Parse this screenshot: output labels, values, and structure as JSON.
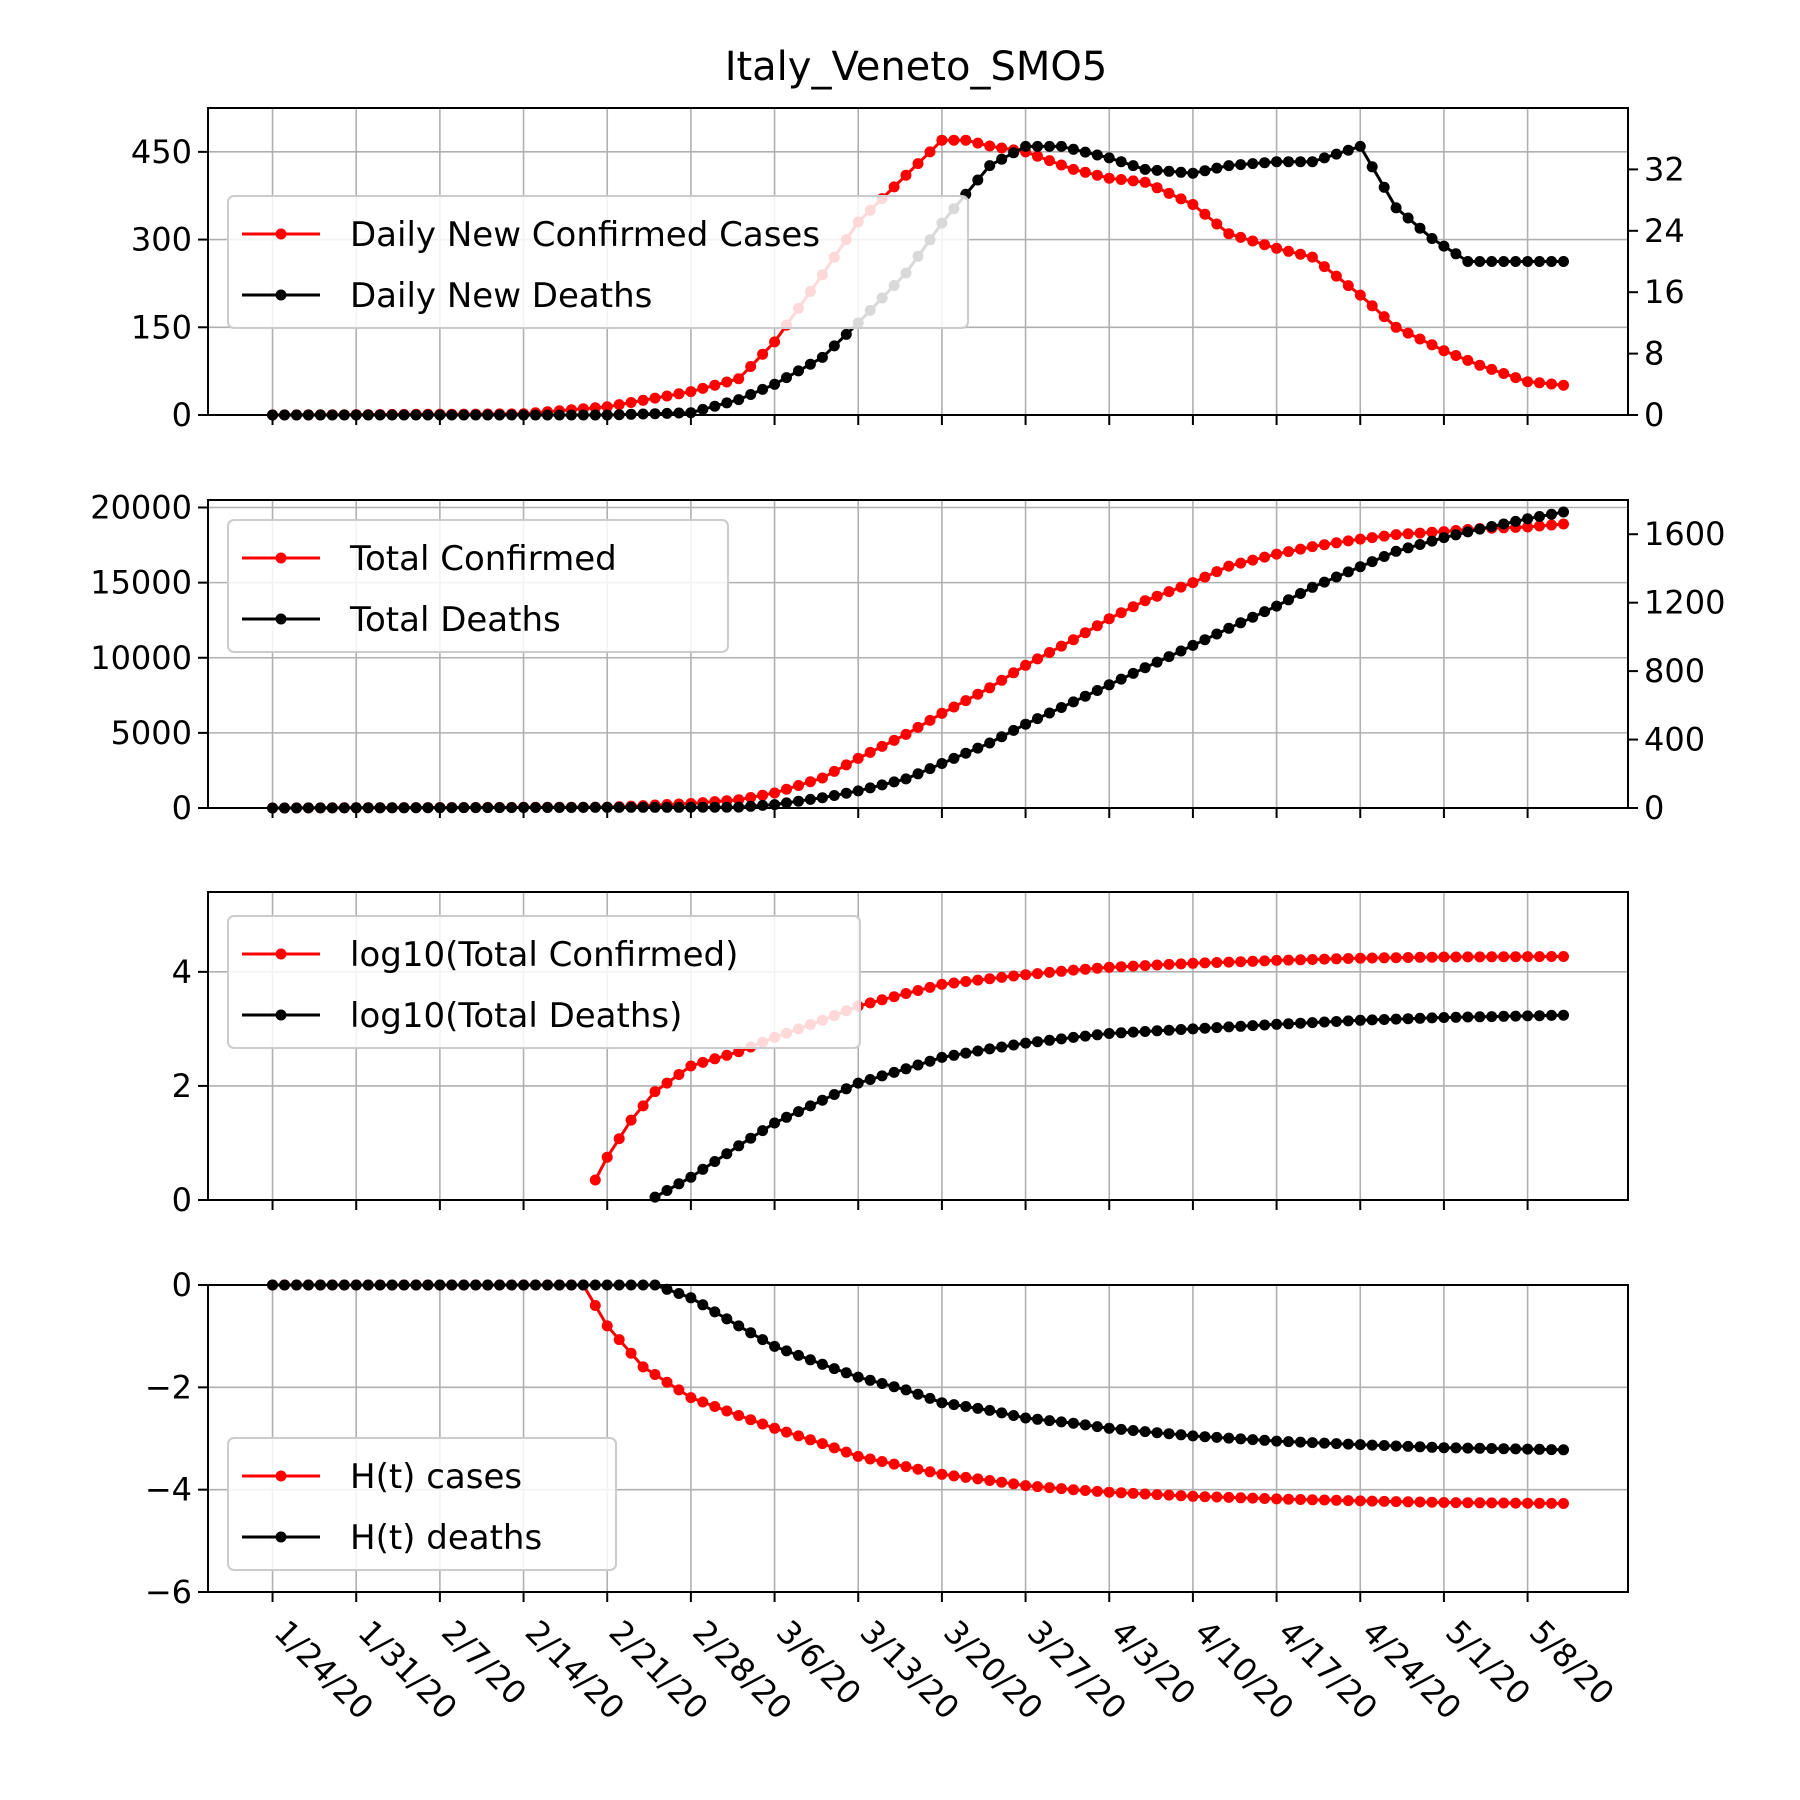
{
  "title": "Italy_Veneto_SMO5",
  "x_dates": [
    "1/24/20",
    "1/31/20",
    "2/7/20",
    "2/14/20",
    "2/21/20",
    "2/28/20",
    "3/6/20",
    "3/13/20",
    "3/20/20",
    "3/27/20",
    "4/3/20",
    "4/10/20",
    "4/17/20",
    "4/24/20",
    "5/1/20",
    "5/8/20"
  ],
  "colors": {
    "cases": "#ff0000",
    "deaths": "#000000",
    "grid": "#b0b0b0"
  },
  "chart_data": [
    {
      "type": "line",
      "x_range": [
        "1/24/20",
        "5/11/20"
      ],
      "ylim_left": [
        0,
        525
      ],
      "yticks_left": [
        "0",
        "150",
        "300",
        "450"
      ],
      "ylim_right": [
        0,
        40
      ],
      "yticks_right": [
        "0",
        "8",
        "16",
        "24",
        "32"
      ],
      "grid": true,
      "legend": "upper-left",
      "series": [
        {
          "name": "Daily New Confirmed Cases",
          "axis": "left",
          "x": [
            "1/24/20",
            "2/14/20",
            "2/21/20",
            "2/28/20",
            "3/3/20",
            "3/6/20",
            "3/10/20",
            "3/13/20",
            "3/17/20",
            "3/20/20",
            "3/22/20",
            "3/24/20",
            "3/27/20",
            "3/31/20",
            "4/3/20",
            "4/6/20",
            "4/10/20",
            "4/13/20",
            "4/17/20",
            "4/20/20",
            "4/24/20",
            "4/27/20",
            "5/1/20",
            "5/4/20",
            "5/8/20",
            "5/11/20"
          ],
          "values": [
            0,
            2,
            14,
            40,
            62,
            125,
            240,
            330,
            410,
            470,
            470,
            460,
            450,
            420,
            405,
            398,
            360,
            310,
            285,
            270,
            205,
            150,
            110,
            85,
            57,
            51
          ]
        },
        {
          "name": "Daily New Deaths",
          "axis": "right",
          "x": [
            "1/24/20",
            "2/21/20",
            "2/28/20",
            "3/3/20",
            "3/6/20",
            "3/10/20",
            "3/13/20",
            "3/17/20",
            "3/20/20",
            "3/24/20",
            "3/27/20",
            "3/30/20",
            "4/3/20",
            "4/6/20",
            "4/10/20",
            "4/13/20",
            "4/17/20",
            "4/20/20",
            "4/24/20",
            "4/27/20",
            "4/30/20",
            "5/3/20",
            "5/6/20",
            "5/11/20"
          ],
          "values": [
            0,
            0,
            0.3,
            2,
            4,
            7.5,
            12,
            18.5,
            25,
            32.5,
            35,
            35,
            33.5,
            32,
            31.5,
            32.5,
            33,
            33,
            35,
            27,
            23,
            20,
            20,
            20
          ]
        }
      ]
    },
    {
      "type": "line",
      "x_range": [
        "1/24/20",
        "5/11/20"
      ],
      "ylim_left": [
        0,
        20500
      ],
      "yticks_left": [
        "0",
        "5000",
        "10000",
        "15000",
        "20000"
      ],
      "ylim_right": [
        0,
        1800
      ],
      "yticks_right": [
        "0",
        "400",
        "800",
        "1200",
        "1600"
      ],
      "grid": true,
      "legend": "upper-left",
      "series": [
        {
          "name": "Total Confirmed",
          "axis": "left",
          "x": [
            "1/24/20",
            "2/21/20",
            "2/28/20",
            "3/3/20",
            "3/6/20",
            "3/10/20",
            "3/13/20",
            "3/17/20",
            "3/20/20",
            "3/24/20",
            "3/27/20",
            "3/31/20",
            "4/3/20",
            "4/6/20",
            "4/10/20",
            "4/13/20",
            "4/17/20",
            "4/20/20",
            "4/24/20",
            "4/27/20",
            "5/1/20",
            "5/4/20",
            "5/8/20",
            "5/11/20"
          ],
          "values": [
            0,
            60,
            300,
            550,
            1000,
            2000,
            3300,
            4900,
            6300,
            8000,
            9500,
            11200,
            12600,
            13800,
            15000,
            16100,
            16900,
            17400,
            17900,
            18200,
            18400,
            18600,
            18700,
            18900
          ]
        },
        {
          "name": "Total Deaths",
          "axis": "right",
          "x": [
            "1/24/20",
            "3/3/20",
            "3/6/20",
            "3/10/20",
            "3/13/20",
            "3/17/20",
            "3/20/20",
            "3/24/20",
            "3/27/20",
            "3/31/20",
            "4/3/20",
            "4/6/20",
            "4/10/20",
            "4/13/20",
            "4/17/20",
            "4/20/20",
            "4/24/20",
            "4/27/20",
            "5/1/20",
            "5/4/20",
            "5/8/20",
            "5/11/20"
          ],
          "values": [
            0,
            5,
            20,
            60,
            100,
            170,
            260,
            380,
            490,
            620,
            720,
            820,
            950,
            1050,
            1180,
            1290,
            1410,
            1500,
            1580,
            1630,
            1690,
            1730
          ]
        }
      ]
    },
    {
      "type": "line",
      "x_range": [
        "1/24/20",
        "5/11/20"
      ],
      "ylim": [
        0,
        5.4
      ],
      "yticks": [
        "0",
        "2",
        "4"
      ],
      "grid": true,
      "legend": "upper-left",
      "series": [
        {
          "name": "log10(Total Confirmed)",
          "x": [
            "2/20/20",
            "2/21/20",
            "2/23/20",
            "2/25/20",
            "2/28/20",
            "3/3/20",
            "3/6/20",
            "3/10/20",
            "3/13/20",
            "3/17/20",
            "3/20/20",
            "3/24/20",
            "3/27/20",
            "3/31/20",
            "4/3/20",
            "4/10/20",
            "4/17/20",
            "4/24/20",
            "5/1/20",
            "5/11/20"
          ],
          "values": [
            0.35,
            0.75,
            1.4,
            1.9,
            2.35,
            2.6,
            2.85,
            3.15,
            3.4,
            3.62,
            3.78,
            3.88,
            3.95,
            4.03,
            4.08,
            4.15,
            4.2,
            4.24,
            4.26,
            4.27
          ]
        },
        {
          "name": "log10(Total Deaths)",
          "x": [
            "2/25/20",
            "2/28/20",
            "3/3/20",
            "3/6/20",
            "3/10/20",
            "3/13/20",
            "3/17/20",
            "3/20/20",
            "3/24/20",
            "3/27/20",
            "3/31/20",
            "4/3/20",
            "4/10/20",
            "4/17/20",
            "4/24/20",
            "5/1/20",
            "5/11/20"
          ],
          "values": [
            0.05,
            0.4,
            0.95,
            1.35,
            1.75,
            2.05,
            2.3,
            2.5,
            2.65,
            2.75,
            2.85,
            2.92,
            3.0,
            3.08,
            3.15,
            3.2,
            3.24
          ]
        }
      ]
    },
    {
      "type": "line",
      "x_range": [
        "1/24/20",
        "5/11/20"
      ],
      "ylim": [
        -6,
        0
      ],
      "yticks": [
        "0",
        "−2",
        "−4",
        "−6"
      ],
      "grid": true,
      "legend": "lower-left",
      "series": [
        {
          "name": "H(t) cases",
          "x": [
            "1/24/20",
            "2/19/20",
            "2/21/20",
            "2/24/20",
            "2/28/20",
            "3/3/20",
            "3/6/20",
            "3/10/20",
            "3/13/20",
            "3/17/20",
            "3/20/20",
            "3/24/20",
            "3/27/20",
            "3/31/20",
            "4/3/20",
            "4/10/20",
            "4/17/20",
            "4/24/20",
            "5/1/20",
            "5/11/20"
          ],
          "values": [
            0,
            0,
            -0.8,
            -1.6,
            -2.2,
            -2.55,
            -2.8,
            -3.1,
            -3.35,
            -3.55,
            -3.7,
            -3.82,
            -3.92,
            -4.0,
            -4.05,
            -4.13,
            -4.18,
            -4.22,
            -4.25,
            -4.27
          ]
        },
        {
          "name": "H(t) deaths",
          "x": [
            "1/24/20",
            "2/25/20",
            "2/28/20",
            "3/3/20",
            "3/6/20",
            "3/10/20",
            "3/13/20",
            "3/17/20",
            "3/20/20",
            "3/24/20",
            "3/27/20",
            "3/31/20",
            "4/3/20",
            "4/10/20",
            "4/17/20",
            "4/24/20",
            "5/1/20",
            "5/11/20"
          ],
          "values": [
            0,
            0,
            -0.25,
            -0.8,
            -1.2,
            -1.55,
            -1.8,
            -2.05,
            -2.3,
            -2.45,
            -2.6,
            -2.7,
            -2.8,
            -2.95,
            -3.05,
            -3.12,
            -3.18,
            -3.22
          ]
        }
      ]
    }
  ]
}
